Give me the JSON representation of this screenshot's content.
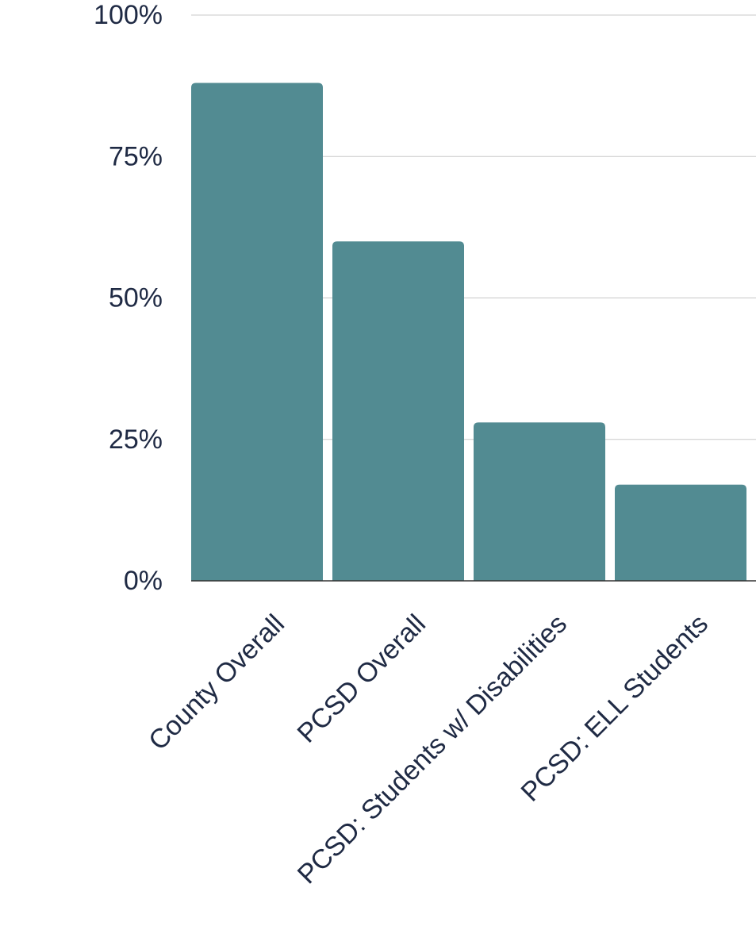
{
  "chart_data": {
    "type": "bar",
    "title": "",
    "xlabel": "",
    "ylabel": "",
    "categories": [
      "County Overall",
      "PCSD Overall",
      "PCSD: Students w/ Disabilities",
      "PCSD: ELL Students"
    ],
    "values": [
      88,
      60,
      28,
      17
    ],
    "value_unit": "%",
    "ylim": [
      0,
      100
    ],
    "yticks": [
      0,
      25,
      50,
      75,
      100
    ],
    "ytick_labels": [
      "0%",
      "25%",
      "50%",
      "75%",
      "100%"
    ],
    "grid": true,
    "legend": "none",
    "colors": {
      "bar": "#528b92",
      "grid": "#c8c8c8",
      "text": "#1f2a44",
      "axis": "#333333"
    }
  }
}
